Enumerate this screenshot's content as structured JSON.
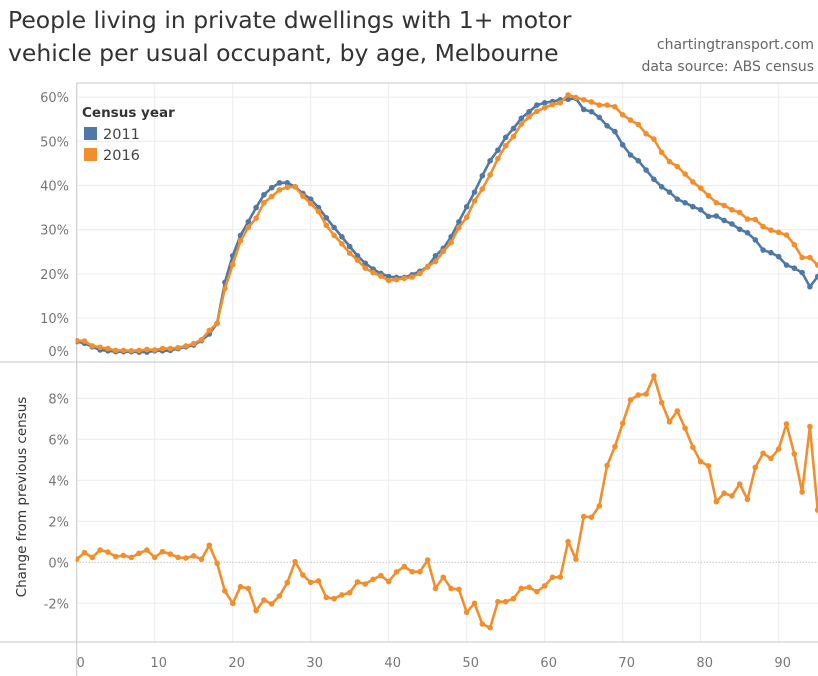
{
  "header": {
    "title": "People living in private dwellings with 1+ motor vehicle per usual occupant, by age, Melbourne",
    "credit": "chartingtransport.com",
    "source": "data source: ABS census"
  },
  "chart_data": [
    {
      "type": "line",
      "title": "",
      "xlabel": "",
      "ylabel": "",
      "x_start": 0,
      "x_step": 1,
      "xlim": [
        0,
        95
      ],
      "ylim": [
        0,
        62
      ],
      "x_ticks": [
        "0",
        "10",
        "20",
        "30",
        "40",
        "50",
        "60",
        "70",
        "80",
        "90"
      ],
      "y_ticks": [
        "0%",
        "10%",
        "20%",
        "30%",
        "40%",
        "50%",
        "60%"
      ],
      "grid": true,
      "legend": {
        "title": "Census year",
        "placement": "top-left"
      },
      "series": [
        {
          "name": "2011",
          "color": "#4e79a7",
          "values": [
            4.7,
            4.3,
            3.5,
            2.8,
            2.6,
            2.4,
            2.4,
            2.4,
            2.3,
            2.3,
            2.6,
            2.6,
            2.7,
            3.1,
            3.5,
            3.9,
            4.9,
            6.4,
            8.8,
            18.1,
            24.1,
            28.7,
            31.8,
            35.0,
            37.9,
            39.5,
            40.6,
            40.6,
            39.7,
            38.2,
            36.9,
            35.0,
            32.7,
            30.5,
            28.4,
            26.2,
            24.1,
            22.4,
            21.1,
            20.1,
            19.4,
            19.2,
            19.2,
            19.8,
            20.6,
            21.6,
            24.1,
            25.8,
            28.4,
            31.8,
            35.2,
            38.5,
            42.2,
            45.6,
            48.0,
            50.9,
            52.9,
            55.2,
            56.7,
            58.2,
            58.7,
            59.0,
            59.4,
            59.5,
            59.7,
            57.2,
            56.7,
            55.4,
            53.5,
            52.2,
            49.2,
            46.9,
            45.6,
            43.5,
            41.4,
            39.7,
            38.5,
            36.9,
            36.1,
            35.2,
            34.5,
            33.0,
            33.1,
            32.1,
            31.3,
            30.1,
            29.3,
            27.7,
            25.4,
            24.8,
            23.9,
            22.0,
            21.3,
            20.3,
            17.1,
            19.4
          ]
        },
        {
          "name": "2016",
          "color": "#f28e2b",
          "values": [
            4.9,
            4.8,
            3.7,
            3.4,
            3.1,
            2.7,
            2.7,
            2.6,
            2.7,
            2.9,
            2.8,
            3.1,
            3.1,
            3.3,
            3.7,
            4.2,
            5.1,
            7.2,
            8.8,
            16.7,
            22.1,
            27.5,
            30.5,
            32.6,
            36.1,
            37.5,
            39.0,
            39.6,
            39.7,
            37.6,
            35.9,
            34.1,
            31.0,
            28.7,
            26.8,
            24.7,
            23.1,
            21.3,
            20.3,
            19.5,
            18.5,
            18.7,
            19.0,
            19.3,
            20.1,
            21.7,
            22.8,
            25.1,
            27.1,
            30.5,
            32.8,
            36.5,
            39.2,
            42.4,
            46.1,
            49.0,
            51.1,
            53.9,
            55.5,
            56.8,
            57.6,
            58.3,
            58.7,
            60.5,
            59.9,
            59.4,
            58.9,
            58.2,
            58.2,
            57.8,
            56.0,
            54.8,
            53.8,
            51.7,
            50.5,
            47.5,
            45.4,
            44.3,
            42.6,
            40.8,
            39.4,
            37.7,
            36.1,
            35.5,
            34.5,
            33.9,
            32.4,
            32.3,
            30.7,
            29.9,
            29.4,
            28.8,
            26.6,
            23.7,
            23.7,
            22.0
          ]
        }
      ]
    },
    {
      "type": "line",
      "title": "",
      "xlabel": "",
      "ylabel": "Change from previous census",
      "x_start": 0,
      "x_step": 1,
      "xlim": [
        0,
        95
      ],
      "ylim": [
        -3.9,
        9.8
      ],
      "x_ticks": [
        "0",
        "10",
        "20",
        "30",
        "40",
        "50",
        "60",
        "70",
        "80",
        "90"
      ],
      "y_ticks": [
        "-2%",
        "0%",
        "2%",
        "4%",
        "6%",
        "8%"
      ],
      "grid": true,
      "zero_line": "dotted",
      "series": [
        {
          "color": "#f28e2b",
          "values": [
            0.15,
            0.47,
            0.24,
            0.6,
            0.5,
            0.28,
            0.33,
            0.24,
            0.44,
            0.6,
            0.24,
            0.52,
            0.4,
            0.24,
            0.21,
            0.31,
            0.15,
            0.83,
            -0.05,
            -1.4,
            -2.0,
            -1.19,
            -1.28,
            -2.36,
            -1.84,
            -2.03,
            -1.64,
            -0.99,
            0.03,
            -0.62,
            -0.98,
            -0.91,
            -1.71,
            -1.77,
            -1.59,
            -1.48,
            -0.96,
            -1.06,
            -0.83,
            -0.65,
            -0.94,
            -0.47,
            -0.21,
            -0.46,
            -0.46,
            0.11,
            -1.27,
            -0.73,
            -1.28,
            -1.32,
            -2.44,
            -2.0,
            -3.01,
            -3.19,
            -1.92,
            -1.92,
            -1.77,
            -1.27,
            -1.22,
            -1.43,
            -1.15,
            -0.73,
            -0.72,
            1.01,
            0.15,
            2.23,
            2.2,
            2.75,
            4.72,
            5.64,
            6.78,
            7.92,
            8.16,
            8.21,
            9.09,
            7.79,
            6.85,
            7.38,
            6.54,
            5.61,
            4.91,
            4.7,
            2.96,
            3.37,
            3.24,
            3.82,
            3.07,
            4.63,
            5.32,
            5.07,
            5.53,
            6.75,
            5.28,
            3.43,
            6.62,
            2.55
          ]
        }
      ]
    }
  ]
}
